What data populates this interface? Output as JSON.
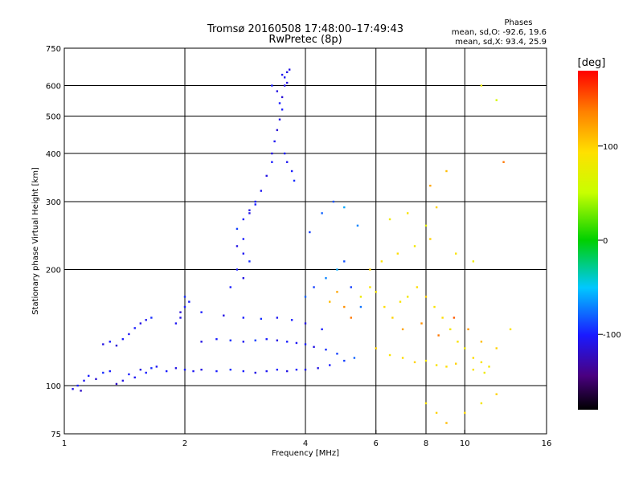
{
  "chart_data": {
    "type": "scatter",
    "title": "Tromsø 20160508 17:48:00–17:49:43",
    "subtitle": "RwPretec (8p)",
    "xlabel": "Frequency [MHz]",
    "ylabel": "Stationary phase Virtual Height [km]",
    "x_scale": "log",
    "y_scale": "log",
    "xlim": [
      1,
      16
    ],
    "ylim": [
      75,
      750
    ],
    "x_ticks": [
      1,
      2,
      4,
      6,
      8,
      10,
      16
    ],
    "y_ticks": [
      75,
      100,
      200,
      300,
      400,
      500,
      600,
      750
    ],
    "x_gridlines": [
      2,
      4,
      6,
      8,
      10
    ],
    "y_gridlines": [
      100,
      200,
      300,
      400,
      500,
      600
    ],
    "grid": true,
    "stats": {
      "header": "Phases",
      "line_o": "mean, sd,O: -92.6, 19.6",
      "line_x": "mean, sd,X:  93.4, 25.9"
    },
    "colorbar": {
      "label": "[deg]",
      "range": [
        -180,
        180
      ],
      "ticks": [
        100,
        0,
        -100
      ]
    },
    "series": [
      {
        "points": [
          [
            1.05,
            98,
            -110
          ],
          [
            1.08,
            100,
            -100
          ],
          [
            1.1,
            97,
            -120
          ],
          [
            1.12,
            103,
            -105
          ],
          [
            1.15,
            106,
            -100
          ],
          [
            1.2,
            104,
            -115
          ],
          [
            1.25,
            108,
            -95
          ],
          [
            1.3,
            109,
            -100
          ],
          [
            1.35,
            101,
            -120
          ],
          [
            1.4,
            103,
            -110
          ],
          [
            1.45,
            107,
            -100
          ],
          [
            1.5,
            105,
            -105
          ],
          [
            1.55,
            110,
            -110
          ],
          [
            1.6,
            108,
            -100
          ],
          [
            1.65,
            111,
            -95
          ],
          [
            1.7,
            112,
            -105
          ],
          [
            1.8,
            109,
            -100
          ],
          [
            1.9,
            111,
            -110
          ],
          [
            2.0,
            110,
            -100
          ],
          [
            2.1,
            109,
            -105
          ],
          [
            2.2,
            110,
            -110
          ],
          [
            2.4,
            109,
            -100
          ],
          [
            2.6,
            110,
            -95
          ],
          [
            2.8,
            109,
            -100
          ],
          [
            3.0,
            108,
            -110
          ],
          [
            3.2,
            109,
            -105
          ],
          [
            3.4,
            110,
            -100
          ],
          [
            3.6,
            109,
            -110
          ],
          [
            3.8,
            110,
            -100
          ],
          [
            4.0,
            110,
            -105
          ],
          [
            4.3,
            111,
            -110
          ],
          [
            4.6,
            113,
            -100
          ],
          [
            5.0,
            116,
            -90
          ],
          [
            5.3,
            118,
            -80
          ],
          [
            1.25,
            128,
            -110
          ],
          [
            1.3,
            130,
            -100
          ],
          [
            1.35,
            127,
            -115
          ],
          [
            1.4,
            132,
            -100
          ],
          [
            1.45,
            136,
            -105
          ],
          [
            1.5,
            141,
            -100
          ],
          [
            1.55,
            145,
            -110
          ],
          [
            1.6,
            148,
            -105
          ],
          [
            1.65,
            150,
            -95
          ],
          [
            1.9,
            145,
            -105
          ],
          [
            1.95,
            150,
            -110
          ],
          [
            2.0,
            160,
            -100
          ],
          [
            2.0,
            170,
            -95
          ],
          [
            1.95,
            155,
            -115
          ],
          [
            2.05,
            165,
            -100
          ],
          [
            2.2,
            130,
            -110
          ],
          [
            2.4,
            132,
            -100
          ],
          [
            2.6,
            131,
            -95
          ],
          [
            2.8,
            130,
            -105
          ],
          [
            3.0,
            131,
            -90
          ],
          [
            3.2,
            132,
            -100
          ],
          [
            3.4,
            131,
            -110
          ],
          [
            3.6,
            130,
            -100
          ],
          [
            3.8,
            129,
            -105
          ],
          [
            4.0,
            128,
            -100
          ],
          [
            4.2,
            126,
            -110
          ],
          [
            4.5,
            124,
            -95
          ],
          [
            4.8,
            121,
            -90
          ],
          [
            2.2,
            155,
            -100
          ],
          [
            2.5,
            152,
            -110
          ],
          [
            2.8,
            150,
            -100
          ],
          [
            3.1,
            149,
            -95
          ],
          [
            3.4,
            150,
            -105
          ],
          [
            3.7,
            148,
            -100
          ],
          [
            4.0,
            145,
            -110
          ],
          [
            4.4,
            140,
            -100
          ],
          [
            2.6,
            180,
            -100
          ],
          [
            2.8,
            190,
            -110
          ],
          [
            2.7,
            200,
            -100
          ],
          [
            2.9,
            210,
            -95
          ],
          [
            2.8,
            220,
            -105
          ],
          [
            2.7,
            230,
            -110
          ],
          [
            2.8,
            240,
            -100
          ],
          [
            2.7,
            255,
            -90
          ],
          [
            2.8,
            270,
            -100
          ],
          [
            2.9,
            285,
            -110
          ],
          [
            3.0,
            295,
            -100
          ],
          [
            2.9,
            280,
            -110
          ],
          [
            3.0,
            300,
            -100
          ],
          [
            3.1,
            320,
            -105
          ],
          [
            3.2,
            350,
            -110
          ],
          [
            3.3,
            380,
            -100
          ],
          [
            3.3,
            400,
            -110
          ],
          [
            3.35,
            430,
            -105
          ],
          [
            3.4,
            460,
            -115
          ],
          [
            3.45,
            490,
            -110
          ],
          [
            3.5,
            520,
            -100
          ],
          [
            3.5,
            560,
            -115
          ],
          [
            3.55,
            600,
            -110
          ],
          [
            3.55,
            630,
            -105
          ],
          [
            3.6,
            650,
            -110
          ],
          [
            3.3,
            600,
            -100
          ],
          [
            3.4,
            580,
            -110
          ],
          [
            3.5,
            640,
            -105
          ],
          [
            3.6,
            610,
            -110
          ],
          [
            3.45,
            540,
            -100
          ],
          [
            3.65,
            660,
            -110
          ],
          [
            3.55,
            400,
            -100
          ],
          [
            3.6,
            380,
            -105
          ],
          [
            3.7,
            360,
            -100
          ],
          [
            3.75,
            340,
            -95
          ],
          [
            4.0,
            170,
            -80
          ],
          [
            4.2,
            180,
            -90
          ],
          [
            4.5,
            190,
            -70
          ],
          [
            4.8,
            200,
            -60
          ],
          [
            5.0,
            210,
            -85
          ],
          [
            5.2,
            180,
            -90
          ],
          [
            5.5,
            160,
            -75
          ],
          [
            4.1,
            250,
            -90
          ],
          [
            4.4,
            280,
            -80
          ],
          [
            4.7,
            300,
            -85
          ],
          [
            5.0,
            290,
            -60
          ],
          [
            5.4,
            260,
            -70
          ]
        ]
      },
      {
        "points": [
          [
            5.5,
            170,
            80
          ],
          [
            5.8,
            180,
            90
          ],
          [
            6.0,
            175,
            85
          ],
          [
            6.3,
            160,
            95
          ],
          [
            6.6,
            150,
            100
          ],
          [
            6.9,
            165,
            90
          ],
          [
            7.2,
            170,
            85
          ],
          [
            7.6,
            180,
            95
          ],
          [
            8.0,
            170,
            100
          ],
          [
            8.4,
            160,
            90
          ],
          [
            8.8,
            150,
            95
          ],
          [
            9.2,
            140,
            85
          ],
          [
            9.6,
            130,
            90
          ],
          [
            10.0,
            125,
            80
          ],
          [
            10.5,
            118,
            95
          ],
          [
            11.0,
            115,
            90
          ],
          [
            11.5,
            112,
            85
          ],
          [
            6.0,
            125,
            100
          ],
          [
            6.5,
            120,
            90
          ],
          [
            7.0,
            118,
            95
          ],
          [
            7.5,
            115,
            100
          ],
          [
            8.0,
            116,
            85
          ],
          [
            8.5,
            113,
            90
          ],
          [
            9.0,
            112,
            95
          ],
          [
            9.5,
            114,
            100
          ],
          [
            10.5,
            110,
            90
          ],
          [
            11.2,
            108,
            80
          ],
          [
            6.5,
            270,
            80
          ],
          [
            7.2,
            280,
            90
          ],
          [
            8.0,
            260,
            70
          ],
          [
            8.5,
            290,
            100
          ],
          [
            9.0,
            360,
            110
          ],
          [
            8.2,
            330,
            120
          ],
          [
            12.5,
            380,
            140
          ],
          [
            12.0,
            550,
            60
          ],
          [
            11.0,
            600,
            80
          ],
          [
            5.8,
            200,
            100
          ],
          [
            6.2,
            210,
            90
          ],
          [
            6.8,
            220,
            95
          ],
          [
            7.5,
            230,
            85
          ],
          [
            8.2,
            240,
            100
          ],
          [
            9.5,
            220,
            90
          ],
          [
            10.5,
            210,
            80
          ],
          [
            7.0,
            140,
            120
          ],
          [
            7.8,
            145,
            130
          ],
          [
            8.6,
            135,
            140
          ],
          [
            9.4,
            150,
            150
          ],
          [
            10.2,
            140,
            125
          ],
          [
            11.0,
            130,
            110
          ],
          [
            12.0,
            125,
            100
          ],
          [
            13.0,
            140,
            90
          ],
          [
            5.0,
            160,
            130
          ],
          [
            5.2,
            150,
            140
          ],
          [
            4.8,
            175,
            120
          ],
          [
            4.6,
            165,
            110
          ],
          [
            8.0,
            90,
            90
          ],
          [
            8.5,
            85,
            100
          ],
          [
            9.0,
            80,
            110
          ],
          [
            10.0,
            85,
            95
          ],
          [
            11.0,
            90,
            85
          ],
          [
            12.0,
            95,
            100
          ]
        ]
      }
    ]
  }
}
